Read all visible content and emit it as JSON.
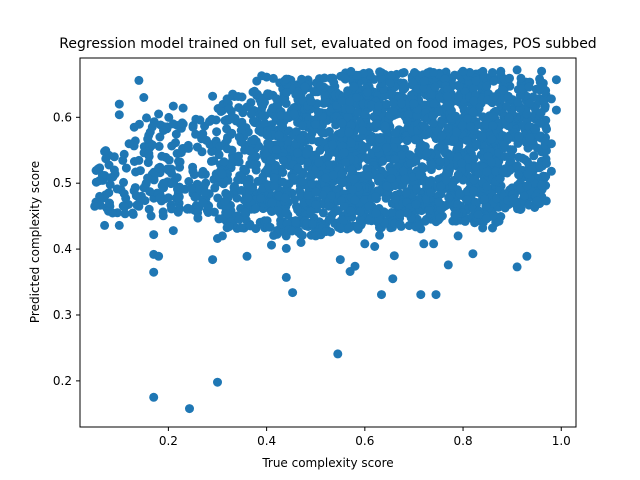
{
  "chart_data": {
    "type": "scatter",
    "title": "Regression model trained on full set, evaluated on food images, POS subbed",
    "xlabel": "True complexity score",
    "ylabel": "Predicted complexity score",
    "xlim": [
      0.02,
      1.03
    ],
    "ylim": [
      0.13,
      0.69
    ],
    "xticks": [
      0.2,
      0.4,
      0.6,
      0.8,
      1.0
    ],
    "xtick_labels": [
      "0.2",
      "0.4",
      "0.6",
      "0.8",
      "1.0"
    ],
    "yticks": [
      0.2,
      0.3,
      0.4,
      0.5,
      0.6
    ],
    "ytick_labels": [
      "0.2",
      "0.3",
      "0.4",
      "0.5",
      "0.6"
    ],
    "grid": false,
    "marker_color": "#1f77b4",
    "points": [
      [
        0.17,
        0.175
      ],
      [
        0.243,
        0.158
      ],
      [
        0.3,
        0.198
      ],
      [
        0.545,
        0.241
      ],
      [
        0.453,
        0.334
      ],
      [
        0.44,
        0.357
      ],
      [
        0.634,
        0.331
      ],
      [
        0.657,
        0.355
      ],
      [
        0.714,
        0.331
      ],
      [
        0.745,
        0.331
      ],
      [
        0.91,
        0.373
      ],
      [
        0.93,
        0.389
      ],
      [
        0.17,
        0.365
      ],
      [
        0.17,
        0.392
      ],
      [
        0.18,
        0.389
      ],
      [
        0.29,
        0.384
      ],
      [
        0.36,
        0.389
      ],
      [
        0.57,
        0.366
      ],
      [
        0.58,
        0.374
      ],
      [
        0.55,
        0.384
      ],
      [
        0.62,
        0.404
      ],
      [
        0.66,
        0.39
      ],
      [
        0.77,
        0.376
      ],
      [
        0.82,
        0.393
      ],
      [
        0.17,
        0.422
      ],
      [
        0.21,
        0.428
      ],
      [
        0.3,
        0.416
      ],
      [
        0.31,
        0.42
      ],
      [
        0.41,
        0.406
      ],
      [
        0.44,
        0.401
      ],
      [
        0.47,
        0.41
      ],
      [
        0.5,
        0.42
      ],
      [
        0.53,
        0.426
      ],
      [
        0.6,
        0.408
      ],
      [
        0.72,
        0.408
      ],
      [
        0.74,
        0.408
      ],
      [
        0.79,
        0.42
      ],
      [
        0.84,
        0.432
      ],
      [
        0.86,
        0.432
      ],
      [
        0.63,
        0.421
      ],
      [
        0.07,
        0.436
      ],
      [
        0.1,
        0.436
      ],
      [
        0.14,
        0.465
      ],
      [
        0.95,
        0.473
      ],
      [
        0.05,
        0.465
      ],
      [
        0.06,
        0.48
      ],
      [
        0.08,
        0.47
      ],
      [
        0.11,
        0.484
      ],
      [
        0.14,
        0.656
      ],
      [
        0.15,
        0.63
      ],
      [
        0.1,
        0.62
      ],
      [
        0.1,
        0.604
      ],
      [
        0.29,
        0.632
      ],
      [
        0.32,
        0.628
      ],
      [
        0.38,
        0.655
      ],
      [
        0.39,
        0.663
      ],
      [
        0.4,
        0.661
      ],
      [
        0.44,
        0.658
      ],
      [
        0.51,
        0.648
      ],
      [
        0.56,
        0.658
      ],
      [
        0.63,
        0.669
      ],
      [
        0.68,
        0.668
      ],
      [
        0.74,
        0.668
      ],
      [
        0.8,
        0.67
      ],
      [
        0.86,
        0.668
      ],
      [
        0.91,
        0.672
      ],
      [
        0.96,
        0.67
      ],
      [
        0.99,
        0.657
      ],
      [
        0.98,
        0.628
      ],
      [
        0.99,
        0.611
      ],
      [
        0.97,
        0.582
      ],
      [
        0.98,
        0.56
      ],
      [
        0.97,
        0.53
      ],
      [
        0.98,
        0.518
      ],
      [
        0.96,
        0.497
      ],
      [
        0.09,
        0.52
      ],
      [
        0.06,
        0.504
      ],
      [
        0.07,
        0.548
      ],
      [
        0.09,
        0.54
      ],
      [
        0.12,
        0.56
      ],
      [
        0.16,
        0.545
      ],
      [
        0.18,
        0.523
      ],
      [
        0.19,
        0.5
      ],
      [
        0.2,
        0.478
      ],
      [
        0.22,
        0.456
      ],
      [
        0.24,
        0.462
      ],
      [
        0.26,
        0.447
      ],
      [
        0.27,
        0.47
      ],
      [
        0.18,
        0.605
      ],
      [
        0.21,
        0.617
      ],
      [
        0.23,
        0.614
      ],
      [
        0.25,
        0.585
      ],
      [
        0.27,
        0.575
      ],
      [
        0.21,
        0.59
      ],
      [
        0.19,
        0.58
      ]
    ],
    "cluster_regions": [
      {
        "x": [
          0.05,
          0.13
        ],
        "y": [
          0.45,
          0.55
        ],
        "count": 40,
        "seed": 11
      },
      {
        "x": [
          0.13,
          0.3
        ],
        "y": [
          0.45,
          0.6
        ],
        "count": 160,
        "seed": 12
      },
      {
        "x": [
          0.3,
          0.4
        ],
        "y": [
          0.43,
          0.64
        ],
        "count": 220,
        "seed": 13
      },
      {
        "x": [
          0.4,
          0.55
        ],
        "y": [
          0.42,
          0.66
        ],
        "count": 520,
        "seed": 14
      },
      {
        "x": [
          0.55,
          0.72
        ],
        "y": [
          0.43,
          0.67
        ],
        "count": 720,
        "seed": 15
      },
      {
        "x": [
          0.72,
          0.88
        ],
        "y": [
          0.44,
          0.67
        ],
        "count": 650,
        "seed": 16
      },
      {
        "x": [
          0.88,
          0.97
        ],
        "y": [
          0.46,
          0.66
        ],
        "count": 260,
        "seed": 17
      }
    ]
  }
}
